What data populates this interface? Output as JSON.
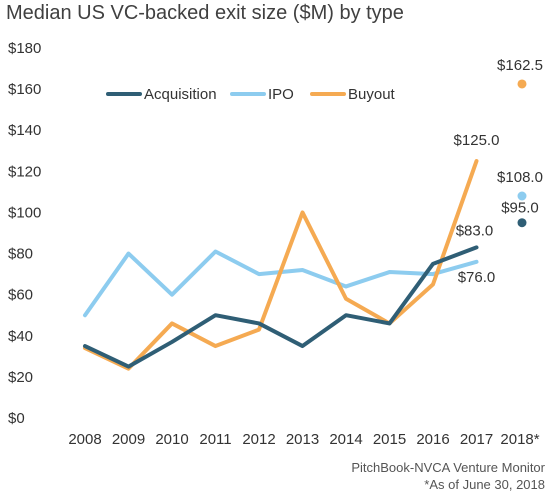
{
  "chart_data": {
    "type": "line",
    "title": "Median US VC-backed exit size ($M) by type",
    "categories": [
      "2008",
      "2009",
      "2010",
      "2011",
      "2012",
      "2013",
      "2014",
      "2015",
      "2016",
      "2017",
      "2018*"
    ],
    "ylim": [
      0,
      180
    ],
    "yticks": [
      0,
      20,
      40,
      60,
      80,
      100,
      120,
      140,
      160,
      180
    ],
    "ytick_labels": [
      "$0",
      "$20",
      "$40",
      "$60",
      "$80",
      "$100",
      "$120",
      "$140",
      "$160",
      "$180"
    ],
    "grid": false,
    "legend_position": "top-left",
    "series": [
      {
        "name": "Acquisition",
        "color": "#2f5e75",
        "values": [
          35,
          25,
          37,
          50,
          46,
          35,
          50,
          46,
          75,
          83.0,
          95.0
        ]
      },
      {
        "name": "IPO",
        "color": "#8dccef",
        "values": [
          50,
          80,
          60,
          81,
          70,
          72,
          64,
          71,
          70,
          76.0,
          108.0
        ]
      },
      {
        "name": "Buyout",
        "color": "#f5aa52",
        "values": [
          34,
          24,
          46,
          35,
          43,
          100,
          58,
          46,
          65,
          125.0,
          162.5
        ]
      }
    ],
    "data_labels": [
      {
        "series": "Buyout",
        "category": "2017",
        "text": "$125.0"
      },
      {
        "series": "Acquisition",
        "category": "2017",
        "text": "$83.0"
      },
      {
        "series": "IPO",
        "category": "2017",
        "text": "$76.0"
      },
      {
        "series": "Buyout",
        "category": "2018*",
        "text": "$162.5"
      },
      {
        "series": "IPO",
        "category": "2018*",
        "text": "$108.0"
      },
      {
        "series": "Acquisition",
        "category": "2018*",
        "text": "$95.0"
      }
    ],
    "annotations": [
      "PitchBook-NVCA Venture Monitor",
      "*As of June 30, 2018"
    ]
  }
}
